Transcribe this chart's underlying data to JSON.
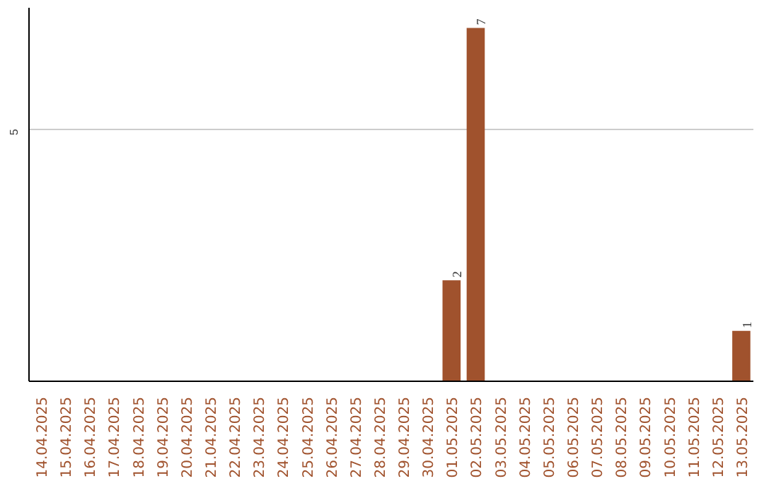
{
  "chart_data": {
    "type": "bar",
    "categories": [
      "14.04.2025",
      "15.04.2025",
      "16.04.2025",
      "17.04.2025",
      "18.04.2025",
      "19.04.2025",
      "20.04.2025",
      "21.04.2025",
      "22.04.2025",
      "23.04.2025",
      "24.04.2025",
      "25.04.2025",
      "26.04.2025",
      "27.04.2025",
      "28.04.2025",
      "29.04.2025",
      "30.04.2025",
      "01.05.2025",
      "02.05.2025",
      "03.05.2025",
      "04.05.2025",
      "05.05.2025",
      "06.05.2025",
      "07.05.2025",
      "08.05.2025",
      "09.05.2025",
      "10.05.2025",
      "11.05.2025",
      "12.05.2025",
      "13.05.2025"
    ],
    "values": [
      null,
      null,
      null,
      null,
      null,
      null,
      null,
      null,
      null,
      null,
      null,
      null,
      null,
      null,
      null,
      null,
      null,
      2,
      7,
      null,
      null,
      null,
      null,
      null,
      null,
      null,
      null,
      null,
      null,
      1
    ],
    "data_labels": true,
    "color": "#a0522d",
    "ylim": [
      0,
      7.4
    ],
    "yticks": [
      5
    ],
    "grid": "y"
  }
}
